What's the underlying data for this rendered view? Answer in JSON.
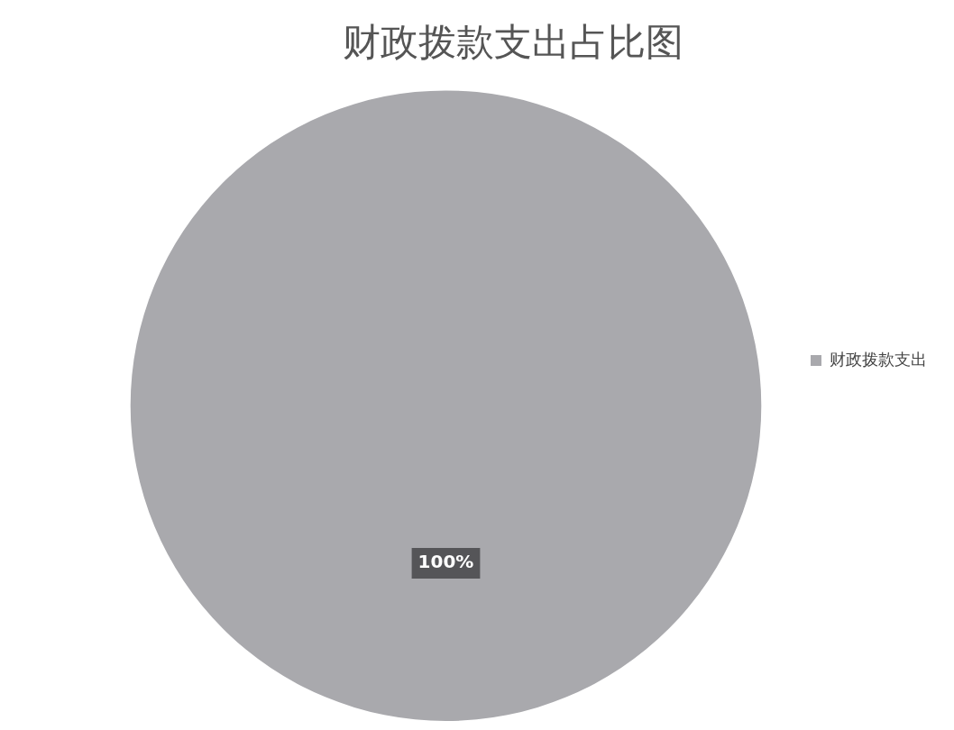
{
  "chart_data": {
    "type": "pie",
    "title": "财政拨款支出占比图",
    "categories": [
      "财政拨款支出"
    ],
    "values": [
      100
    ],
    "colors": [
      "#a9a9ad"
    ],
    "value_labels": [
      "100%"
    ],
    "legend": "right"
  }
}
